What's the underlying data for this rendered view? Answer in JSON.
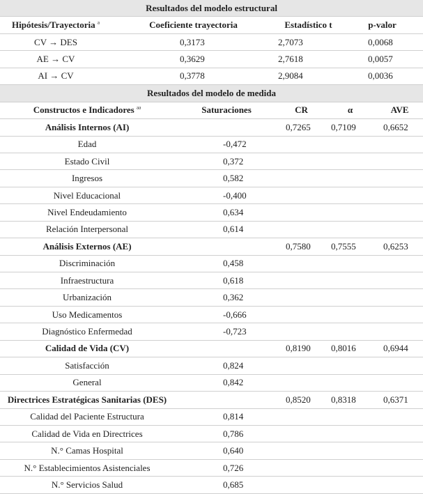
{
  "structural": {
    "title": "Resultados del modelo estructural",
    "headers": [
      "Hipótesis/Trayectoria",
      "Coeficiente trayectoria",
      "Estadístico t",
      "p-valor"
    ],
    "header_note": "a",
    "rows": [
      [
        "CV → DES",
        "0,3173",
        "2,7073",
        "0,0068"
      ],
      [
        "AE → CV",
        "0,3629",
        "2,7618",
        "0,0057"
      ],
      [
        "AI → CV",
        "0,3778",
        "2,9084",
        "0,0036"
      ]
    ]
  },
  "measurement": {
    "title": "Resultados del modelo de medida",
    "headers": [
      "Constructos e Indicadores",
      "Saturaciones",
      "CR",
      "α",
      "AVE"
    ],
    "header_note": "aa",
    "groups": [
      {
        "name": "Análisis Internos (AI)",
        "cr": "0,7265",
        "alpha": "0,7109",
        "ave": "0,6652",
        "indicators": [
          [
            "Edad",
            "-0,472"
          ],
          [
            "Estado Civil",
            "0,372"
          ],
          [
            "Ingresos",
            "0,582"
          ],
          [
            "Nivel Educacional",
            "-0,400"
          ],
          [
            "Nivel Endeudamiento",
            "0,634"
          ],
          [
            "Relación Interpersonal",
            "0,614"
          ]
        ]
      },
      {
        "name": "Análisis Externos (AE)",
        "cr": "0,7580",
        "alpha": "0,7555",
        "ave": "0,6253",
        "indicators": [
          [
            "Discriminación",
            "0,458"
          ],
          [
            "Infraestructura",
            "0,618"
          ],
          [
            "Urbanización",
            "0,362"
          ],
          [
            "Uso Medicamentos",
            "-0,666"
          ],
          [
            "Diagnóstico Enfermedad",
            "-0,723"
          ]
        ]
      },
      {
        "name": "Calidad de Vida (CV)",
        "cr": "0,8190",
        "alpha": "0,8016",
        "ave": "0,6944",
        "indicators": [
          [
            "Satisfacción",
            "0,824"
          ],
          [
            "General",
            "0,842"
          ]
        ]
      },
      {
        "name": "Directrices Estratégicas Sanitarias (DES)",
        "cr": "0,8520",
        "alpha": "0,8318",
        "ave": "0,6371",
        "indicators": [
          [
            "Calidad del Paciente Estructura",
            "0,814"
          ],
          [
            "Calidad de Vida en Directrices",
            "0,786"
          ],
          [
            "N.° Camas Hospital",
            "0,640"
          ],
          [
            "N.° Establecimientos Asistenciales",
            "0,726"
          ],
          [
            "N.° Servicios Salud",
            "0,685"
          ]
        ]
      }
    ]
  }
}
